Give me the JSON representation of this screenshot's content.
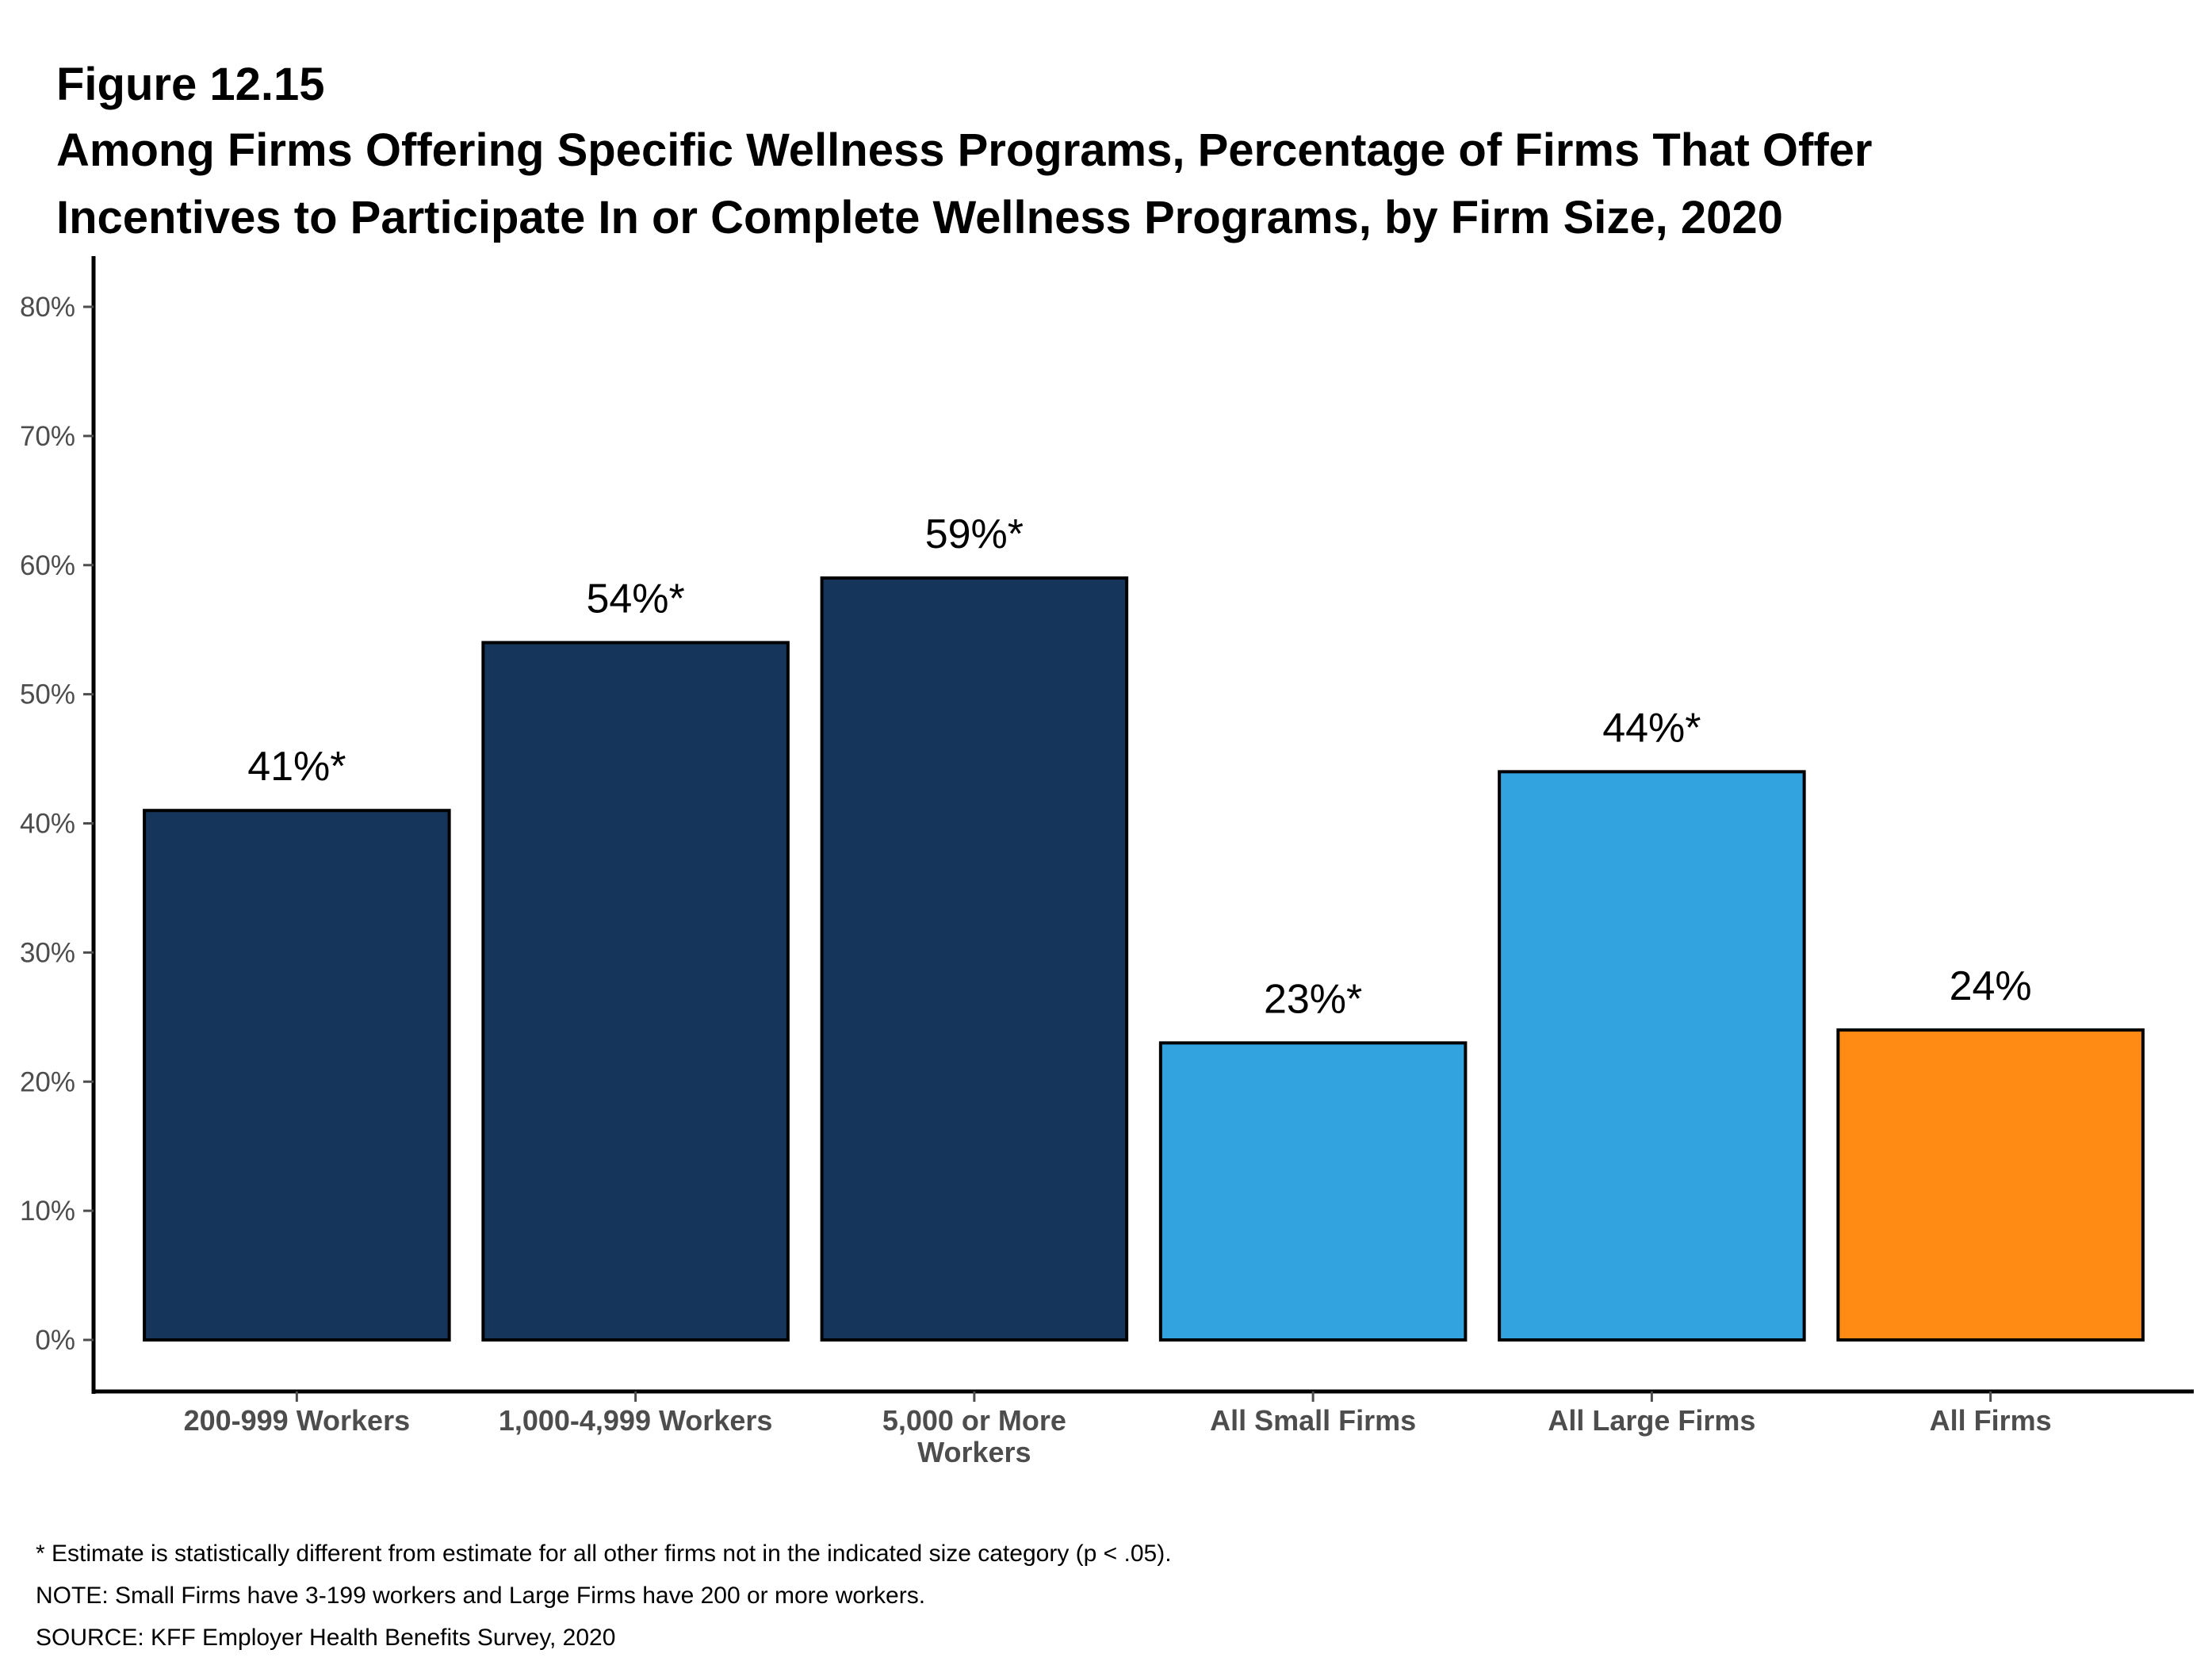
{
  "figure_label": "Figure 12.15",
  "title_lines": [
    "Among Firms Offering Specific Wellness Programs, Percentage of Firms That Offer",
    "Incentives to Participate In or Complete Wellness Programs, by Firm Size, 2020"
  ],
  "chart_data": {
    "type": "bar",
    "title": "Among Firms Offering Specific Wellness Programs, Percentage of Firms That Offer Incentives to Participate In or Complete Wellness Programs, by Firm Size, 2020",
    "categories": [
      "200-999 Workers",
      "1,000-4,999 Workers",
      "5,000 or More Workers",
      "All Small Firms",
      "All Large Firms",
      "All Firms"
    ],
    "category_label_lines": [
      [
        "200-999 Workers"
      ],
      [
        "1,000-4,999 Workers"
      ],
      [
        "5,000 or More",
        "Workers"
      ],
      [
        "All Small Firms"
      ],
      [
        "All Large Firms"
      ],
      [
        "All Firms"
      ]
    ],
    "values": [
      41,
      54,
      59,
      23,
      44,
      24
    ],
    "data_labels": [
      "41%*",
      "54%*",
      "59%*",
      "23%*",
      "44%*",
      "24%"
    ],
    "bar_colors": [
      "#15355a",
      "#15355a",
      "#15355a",
      "#33a3e0",
      "#33a3e0",
      "#ff8a14"
    ],
    "xlabel": "",
    "ylabel": "",
    "ylim": [
      0,
      80
    ],
    "yticks": [
      0,
      10,
      20,
      30,
      40,
      50,
      60,
      70,
      80
    ],
    "ytick_labels": [
      "0%",
      "10%",
      "20%",
      "30%",
      "40%",
      "50%",
      "60%",
      "70%",
      "80%"
    ],
    "grid": false,
    "legend": "none"
  },
  "notes": [
    "* Estimate is statistically different from estimate for all other firms not in the indicated size category (p < .05).",
    "NOTE: Small Firms have 3-199 workers and Large Firms have 200 or more workers.",
    "SOURCE: KFF Employer Health Benefits Survey, 2020"
  ],
  "colors": {
    "axis_text": "#4d4d4d",
    "bar_outline": "#000000"
  }
}
